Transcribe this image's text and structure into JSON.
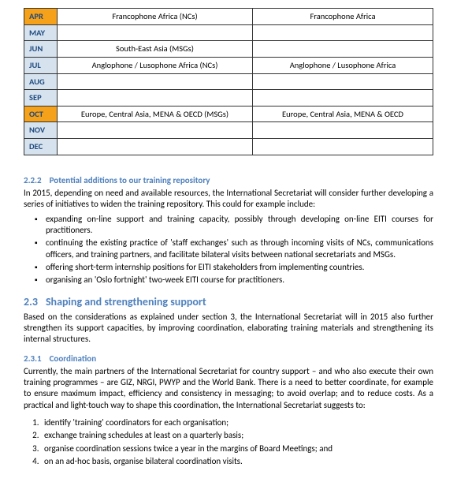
{
  "table": {
    "rows": [
      {
        "month": "APR",
        "hl": true,
        "col2": "Francophone Africa (NCs)",
        "col3": "Francophone Africa"
      },
      {
        "month": "MAY",
        "hl": false,
        "col2": "",
        "col3": ""
      },
      {
        "month": "JUN",
        "hl": false,
        "col2": "South-East Asia (MSGs)",
        "col3": ""
      },
      {
        "month": "JUL",
        "hl": false,
        "col2": "Anglophone / Lusophone Africa (NCs)",
        "col3": "Anglophone / Lusophone Africa"
      },
      {
        "month": "AUG",
        "hl": false,
        "col2": "",
        "col3": ""
      },
      {
        "month": "SEP",
        "hl": false,
        "col2": "",
        "col3": ""
      },
      {
        "month": "OCT",
        "hl": true,
        "col2": "Europe, Central Asia, MENA & OECD (MSGs)",
        "col3": "Europe, Central Asia, MENA & OECD"
      },
      {
        "month": "NOV",
        "hl": false,
        "col2": "",
        "col3": ""
      },
      {
        "month": "DEC",
        "hl": false,
        "col2": "",
        "col3": ""
      }
    ]
  },
  "sec222": {
    "num": "2.2.2",
    "title": "Potential additions to our training repository",
    "intro": "In 2015, depending on need and available resources, the International Secretariat will consider further developing a series of initiatives to widen the training repository. This could for example include:",
    "bullets": [
      "expanding on-line support and training capacity, possibly through developing on-line EITI courses for practitioners.",
      "continuing the existing practice of 'staff exchanges' such as through incoming visits of NCs, communications officers, and training partners, and facilitate bilateral visits between national secretariats and MSGs.",
      "offering short-term internship positions for EITI stakeholders from implementing countries.",
      "organising an 'Oslo fortnight' two-week EITI course for practitioners."
    ]
  },
  "sec23": {
    "num": "2.3",
    "title": "Shaping and strengthening support",
    "intro": "Based on the considerations as explained under section 3, the International Secretariat will in 2015 also further strengthen its support capacities, by improving coordination, elaborating training materials and strengthening its internal structures."
  },
  "sec231": {
    "num": "2.3.1",
    "title": "Coordination",
    "intro": "Currently, the main partners of the International Secretariat for country support – and who also execute their own training programmes – are GIZ, NRGI, PWYP and the World Bank. There is a need to better coordinate, for example to ensure maximum impact, efficiency and consistency in messaging; to avoid overlap; and to reduce costs. As a practical and light-touch way to shape this coordination, the International Secretariat suggests to:",
    "list": [
      "identify 'training' coordinators for each organisation;",
      "exchange training schedules at least on a quarterly basis;",
      "organise coordination sessions twice a year in the margins of Board Meetings; and",
      "on an ad-hoc basis, organise bilateral coordination visits."
    ]
  }
}
